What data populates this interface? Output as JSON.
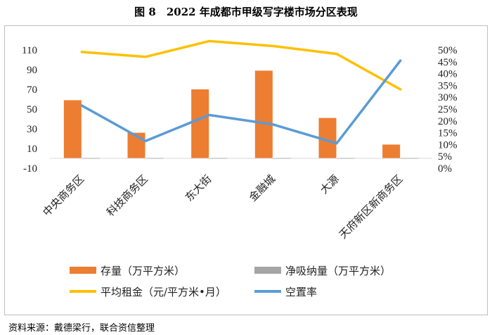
{
  "figure_title": "图 8　2022 年成都市甲级写字楼市场分区表现",
  "source": "资料来源：戴德梁行，联合资信整理",
  "chart_data": {
    "type": "bar",
    "categories": [
      "中央商务区",
      "科技商务区",
      "东大街",
      "金融城",
      "大源",
      "天府新区新商务区"
    ],
    "series": [
      {
        "name": "存量（万平方米）",
        "kind": "bar",
        "axis": "left",
        "color": "#ED7D31",
        "values": [
          59,
          26,
          70,
          89,
          41,
          14
        ]
      },
      {
        "name": "净吸纳量（万平方米）",
        "kind": "bar",
        "axis": "left",
        "color": "#A5A5A5",
        "values": [
          1,
          0.5,
          -1,
          0,
          1,
          0.5
        ]
      },
      {
        "name": "平均租金（元/平方米•月）",
        "kind": "line",
        "axis": "left",
        "color": "#FFC000",
        "values": [
          108,
          103,
          119,
          114,
          106,
          70
        ]
      },
      {
        "name": "空置率",
        "kind": "line",
        "axis": "right",
        "color": "#5B9BD5",
        "values": [
          0.265,
          0.115,
          0.225,
          0.185,
          0.105,
          0.455
        ]
      }
    ],
    "y_left": {
      "min": -10,
      "max": 110,
      "ticks": [
        "-10",
        "10",
        "30",
        "50",
        "70",
        "90",
        "110"
      ]
    },
    "y_right": {
      "min": 0,
      "max": 0.5,
      "ticks": [
        "0%",
        "5%",
        "10%",
        "15%",
        "20%",
        "25%",
        "30%",
        "35%",
        "40%",
        "45%",
        "50%"
      ]
    },
    "xlabel": "",
    "ylabel": "",
    "grid": false,
    "legend": "bottom"
  }
}
